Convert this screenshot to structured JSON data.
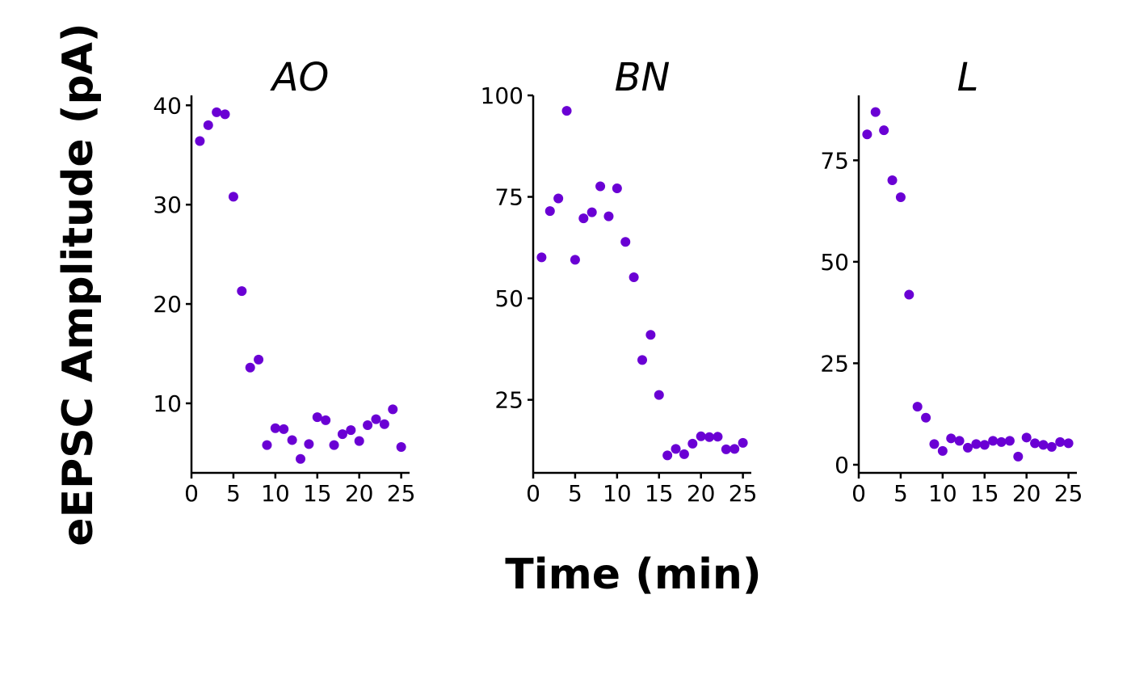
{
  "chart_data": {
    "type": "scatter",
    "xlabel": "Time (min)",
    "ylabel": "eEPSC Amplitude (pA)",
    "point_color": "#6a00d4",
    "grid": false,
    "legend": "none",
    "panels": [
      {
        "title": "AO",
        "xlim": [
          0,
          26
        ],
        "ylim": [
          3,
          41
        ],
        "xticks": [
          0,
          5,
          10,
          15,
          20,
          25
        ],
        "yticks": [
          10,
          20,
          30,
          40
        ],
        "x": [
          1,
          2,
          3,
          4,
          5,
          6,
          7,
          8,
          9,
          10,
          11,
          12,
          13,
          14,
          15,
          16,
          17,
          18,
          19,
          20,
          21,
          22,
          23,
          24,
          25
        ],
        "y": [
          36.4,
          38.0,
          39.3,
          39.1,
          30.8,
          21.3,
          13.6,
          14.4,
          5.8,
          7.5,
          7.4,
          6.3,
          4.4,
          5.9,
          8.6,
          8.3,
          5.8,
          6.9,
          7.3,
          6.2,
          7.8,
          8.4,
          7.9,
          9.4,
          5.6
        ]
      },
      {
        "title": "BN",
        "xlim": [
          0,
          26
        ],
        "ylim": [
          7,
          100
        ],
        "xticks": [
          0,
          5,
          10,
          15,
          20,
          25
        ],
        "yticks": [
          25,
          50,
          75,
          100
        ],
        "x": [
          1,
          2,
          3,
          4,
          5,
          6,
          7,
          8,
          9,
          10,
          11,
          12,
          13,
          14,
          15,
          16,
          17,
          18,
          19,
          20,
          21,
          22,
          23,
          24,
          25
        ],
        "y": [
          60.1,
          71.5,
          74.6,
          96.2,
          59.5,
          69.7,
          71.2,
          77.6,
          70.2,
          77.1,
          63.9,
          55.2,
          34.8,
          41.0,
          26.2,
          11.3,
          12.9,
          11.6,
          14.2,
          16.0,
          15.8,
          15.9,
          12.8,
          12.9,
          14.4
        ]
      },
      {
        "title": "L",
        "xlim": [
          0,
          26
        ],
        "ylim": [
          -2,
          91
        ],
        "xticks": [
          0,
          5,
          10,
          15,
          20,
          25
        ],
        "yticks": [
          0,
          25,
          50,
          75
        ],
        "x": [
          1,
          2,
          3,
          4,
          5,
          6,
          7,
          8,
          9,
          10,
          11,
          12,
          13,
          14,
          15,
          16,
          17,
          18,
          19,
          20,
          21,
          22,
          23,
          24,
          25
        ],
        "y": [
          81.4,
          86.9,
          82.4,
          70.1,
          65.9,
          41.9,
          14.3,
          11.6,
          5.1,
          3.4,
          6.5,
          5.9,
          4.2,
          5.1,
          4.9,
          5.9,
          5.6,
          5.9,
          2.0,
          6.7,
          5.3,
          4.9,
          4.4,
          5.6,
          5.3
        ]
      }
    ]
  }
}
